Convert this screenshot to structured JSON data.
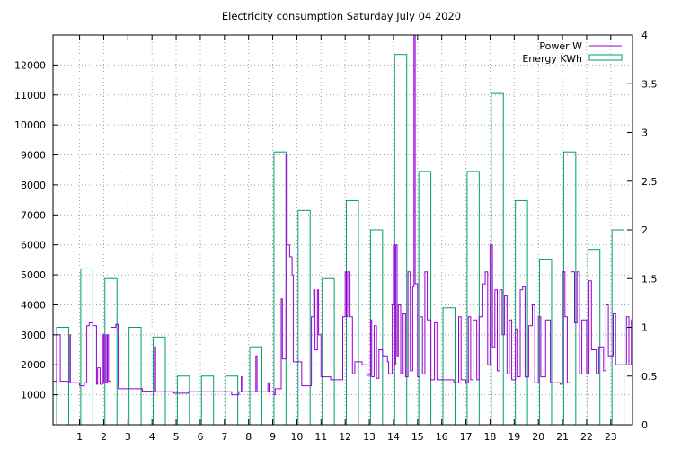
{
  "chart_data": {
    "type": "bar",
    "title": "Electricity consumption Saturday July 04 2020",
    "xlabel": "",
    "ylabel": "",
    "y2label": "",
    "grid": true,
    "legend_position": "top-right",
    "x_ticks": [
      1,
      2,
      3,
      4,
      5,
      6,
      7,
      8,
      9,
      10,
      11,
      12,
      13,
      14,
      15,
      16,
      17,
      18,
      19,
      20,
      21,
      22,
      23
    ],
    "y_ticks": [
      1000,
      2000,
      3000,
      4000,
      5000,
      6000,
      7000,
      8000,
      9000,
      10000,
      11000,
      12000
    ],
    "y2_ticks": [
      "0",
      "0.5",
      "1",
      "1.5",
      "2",
      "2.5",
      "3",
      "3.5",
      "4"
    ],
    "xlim": [
      -0.1,
      23.9
    ],
    "ylim": [
      0,
      13000
    ],
    "y2lim": [
      0,
      4
    ],
    "colors": {
      "power": "#9400d3",
      "energy": "#009e73"
    },
    "series": [
      {
        "name": "Power W",
        "type": "line",
        "axis": "y1",
        "points": [
          [
            -0.1,
            1450
          ],
          [
            0.05,
            3000
          ],
          [
            0.2,
            1450
          ],
          [
            0.55,
            1400
          ],
          [
            0.6,
            3000
          ],
          [
            0.62,
            1400
          ],
          [
            0.9,
            1400
          ],
          [
            1.0,
            1300
          ],
          [
            1.2,
            1400
          ],
          [
            1.3,
            3300
          ],
          [
            1.4,
            3400
          ],
          [
            1.55,
            3300
          ],
          [
            1.7,
            1350
          ],
          [
            1.75,
            1900
          ],
          [
            1.85,
            1350
          ],
          [
            1.95,
            3000
          ],
          [
            2.0,
            1400
          ],
          [
            2.05,
            3000
          ],
          [
            2.1,
            1400
          ],
          [
            2.15,
            3000
          ],
          [
            2.2,
            1450
          ],
          [
            2.3,
            3250
          ],
          [
            2.5,
            3350
          ],
          [
            2.6,
            1200
          ],
          [
            3.0,
            1200
          ],
          [
            3.5,
            1200
          ],
          [
            3.6,
            1120
          ],
          [
            4.0,
            1100
          ],
          [
            4.1,
            2600
          ],
          [
            4.15,
            1100
          ],
          [
            4.5,
            1100
          ],
          [
            4.9,
            1050
          ],
          [
            5.3,
            1050
          ],
          [
            5.5,
            1100
          ],
          [
            6.0,
            1100
          ],
          [
            6.5,
            1100
          ],
          [
            7.0,
            1100
          ],
          [
            7.3,
            1000
          ],
          [
            7.6,
            1100
          ],
          [
            7.7,
            1600
          ],
          [
            7.75,
            1100
          ],
          [
            8.1,
            1100
          ],
          [
            8.3,
            2300
          ],
          [
            8.35,
            1100
          ],
          [
            8.6,
            1100
          ],
          [
            8.8,
            1400
          ],
          [
            8.85,
            1100
          ],
          [
            9.05,
            1000
          ],
          [
            9.1,
            1200
          ],
          [
            9.3,
            1200
          ],
          [
            9.35,
            4200
          ],
          [
            9.4,
            2200
          ],
          [
            9.55,
            9000
          ],
          [
            9.6,
            6000
          ],
          [
            9.7,
            5600
          ],
          [
            9.8,
            5000
          ],
          [
            9.85,
            2100
          ],
          [
            10.1,
            2100
          ],
          [
            10.2,
            1300
          ],
          [
            10.5,
            1300
          ],
          [
            10.6,
            3600
          ],
          [
            10.7,
            4500
          ],
          [
            10.75,
            2500
          ],
          [
            10.85,
            4500
          ],
          [
            10.9,
            3000
          ],
          [
            11.0,
            1600
          ],
          [
            11.4,
            1500
          ],
          [
            11.8,
            1500
          ],
          [
            11.9,
            3600
          ],
          [
            12.0,
            5100
          ],
          [
            12.05,
            3600
          ],
          [
            12.1,
            5100
          ],
          [
            12.2,
            3600
          ],
          [
            12.3,
            1700
          ],
          [
            12.4,
            2100
          ],
          [
            12.7,
            2000
          ],
          [
            12.9,
            1650
          ],
          [
            13.05,
            3500
          ],
          [
            13.1,
            1600
          ],
          [
            13.2,
            3300
          ],
          [
            13.3,
            1550
          ],
          [
            13.4,
            2500
          ],
          [
            13.55,
            2300
          ],
          [
            13.75,
            2100
          ],
          [
            13.8,
            1700
          ],
          [
            13.95,
            4000
          ],
          [
            14.0,
            6000
          ],
          [
            14.05,
            2000
          ],
          [
            14.1,
            6000
          ],
          [
            14.15,
            2300
          ],
          [
            14.2,
            4000
          ],
          [
            14.3,
            1700
          ],
          [
            14.4,
            3700
          ],
          [
            14.5,
            1600
          ],
          [
            14.6,
            5100
          ],
          [
            14.7,
            1800
          ],
          [
            14.8,
            4600
          ],
          [
            14.85,
            13000
          ],
          [
            14.9,
            4700
          ],
          [
            15.0,
            1600
          ],
          [
            15.1,
            3600
          ],
          [
            15.2,
            1700
          ],
          [
            15.3,
            5100
          ],
          [
            15.4,
            3500
          ],
          [
            15.55,
            1500
          ],
          [
            15.7,
            3400
          ],
          [
            15.8,
            1500
          ],
          [
            16.0,
            1500
          ],
          [
            16.5,
            1400
          ],
          [
            16.7,
            3600
          ],
          [
            16.8,
            1500
          ],
          [
            17.0,
            1400
          ],
          [
            17.1,
            3600
          ],
          [
            17.2,
            1500
          ],
          [
            17.3,
            3500
          ],
          [
            17.45,
            1500
          ],
          [
            17.55,
            3600
          ],
          [
            17.7,
            4700
          ],
          [
            17.8,
            5100
          ],
          [
            17.9,
            2000
          ],
          [
            18.0,
            6000
          ],
          [
            18.1,
            2600
          ],
          [
            18.2,
            4500
          ],
          [
            18.3,
            1800
          ],
          [
            18.4,
            4500
          ],
          [
            18.5,
            3000
          ],
          [
            18.6,
            4300
          ],
          [
            18.7,
            1700
          ],
          [
            18.8,
            3500
          ],
          [
            18.9,
            1500
          ],
          [
            19.05,
            3200
          ],
          [
            19.15,
            1600
          ],
          [
            19.25,
            4500
          ],
          [
            19.35,
            4600
          ],
          [
            19.45,
            1600
          ],
          [
            19.6,
            3300
          ],
          [
            19.75,
            4000
          ],
          [
            19.85,
            1400
          ],
          [
            20.0,
            3600
          ],
          [
            20.1,
            1600
          ],
          [
            20.3,
            3500
          ],
          [
            20.5,
            1400
          ],
          [
            20.9,
            1350
          ],
          [
            21.0,
            5100
          ],
          [
            21.1,
            3600
          ],
          [
            21.2,
            1400
          ],
          [
            21.35,
            5100
          ],
          [
            21.5,
            3400
          ],
          [
            21.6,
            5100
          ],
          [
            21.7,
            1700
          ],
          [
            21.8,
            3500
          ],
          [
            22.0,
            1700
          ],
          [
            22.1,
            4800
          ],
          [
            22.2,
            2500
          ],
          [
            22.4,
            1700
          ],
          [
            22.5,
            2600
          ],
          [
            22.7,
            1800
          ],
          [
            22.8,
            4000
          ],
          [
            22.9,
            2300
          ],
          [
            23.1,
            3700
          ],
          [
            23.2,
            2000
          ],
          [
            23.5,
            2000
          ],
          [
            23.65,
            3600
          ],
          [
            23.75,
            2000
          ],
          [
            23.85,
            3500
          ],
          [
            23.9,
            3000
          ]
        ]
      },
      {
        "name": "Energy KWh",
        "type": "bar",
        "axis": "y2",
        "categories": [
          0,
          1,
          2,
          3,
          4,
          5,
          6,
          7,
          8,
          9,
          10,
          11,
          12,
          13,
          14,
          15,
          16,
          17,
          18,
          19,
          20,
          21,
          22,
          23
        ],
        "values": [
          1.0,
          1.6,
          1.5,
          1.0,
          0.9,
          0.5,
          0.5,
          0.5,
          0.8,
          2.8,
          2.2,
          1.5,
          2.3,
          2.0,
          3.8,
          2.6,
          1.2,
          2.6,
          3.4,
          2.3,
          1.7,
          2.8,
          1.8,
          2.0
        ]
      }
    ]
  }
}
